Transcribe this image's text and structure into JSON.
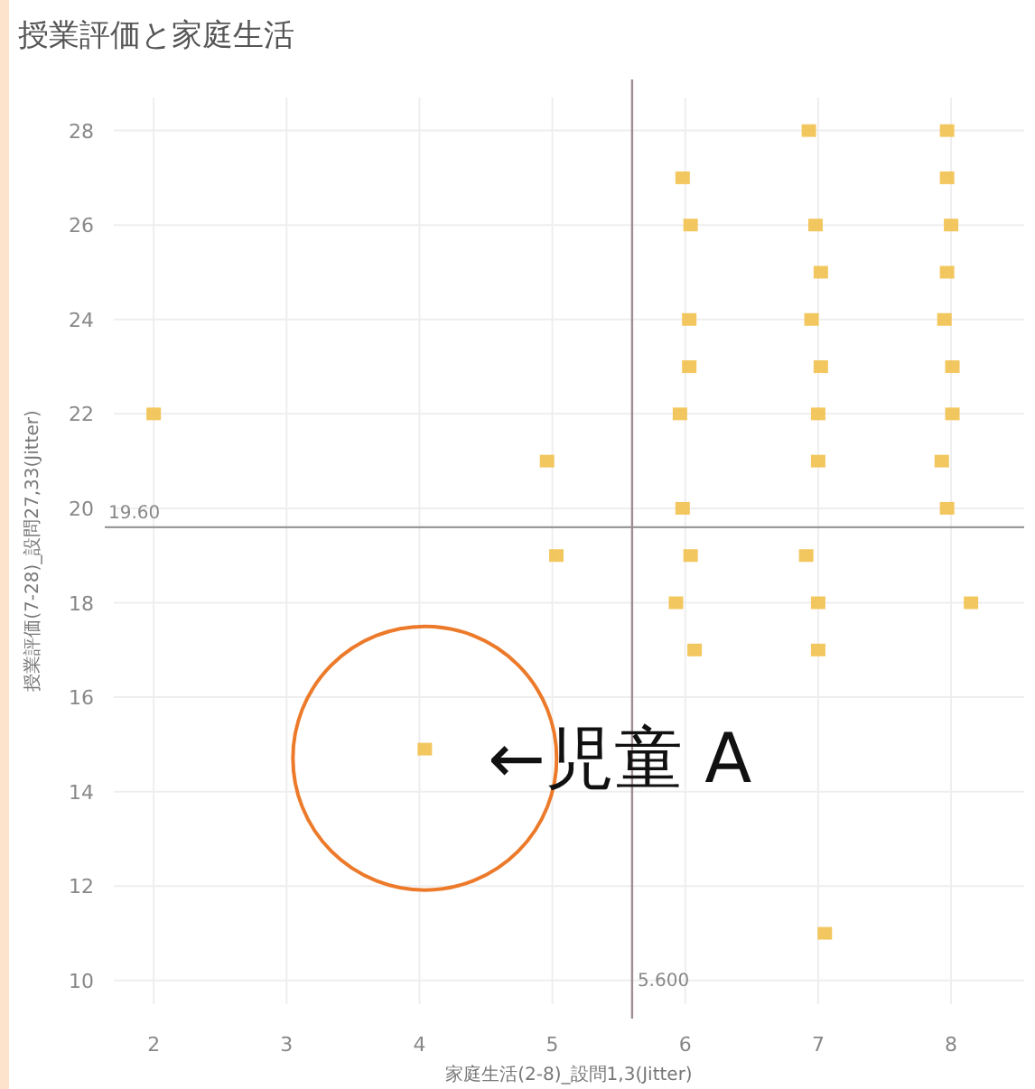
{
  "chart_data": {
    "type": "scatter",
    "title": "授業評価と家庭生活",
    "xlabel": "家庭生活(2-8)_設問1,3(Jitter)",
    "ylabel": "授業評価(7-28)_設問27,33(Jitter)",
    "xlim": [
      1.7,
      8.55
    ],
    "ylim": [
      9.5,
      28.7
    ],
    "xticks": [
      2,
      3,
      4,
      5,
      6,
      7,
      8
    ],
    "yticks": [
      10,
      12,
      14,
      16,
      18,
      20,
      22,
      24,
      26,
      28
    ],
    "grid": true,
    "marker": "square",
    "series": [
      {
        "color": "#f2c14e",
        "x": [
          2,
          4.96,
          5.03,
          4.04,
          6.93,
          7.97,
          5.98,
          7.97,
          6.04,
          6.98,
          8,
          7.02,
          7.97,
          6.03,
          6.95,
          7.95,
          6.03,
          7.02,
          8.01,
          5.96,
          7,
          8.01,
          7,
          7.93,
          5.98,
          7.97,
          6.04,
          6.91,
          5.93,
          7,
          8.15,
          6.07,
          7,
          7.05
        ],
        "values": [
          22,
          21,
          19,
          14.9,
          28,
          28,
          27,
          27,
          26,
          26,
          26,
          25,
          25,
          24,
          24,
          24,
          23,
          23,
          23,
          22,
          22,
          22,
          21,
          21,
          20,
          20,
          19,
          19,
          18,
          18,
          18,
          17,
          17,
          11
        ]
      }
    ],
    "ref_lines": [
      {
        "axis": "y",
        "value": 19.6,
        "label": "19.60",
        "color": "#999999"
      },
      {
        "axis": "x",
        "value": 5.6,
        "label": "5.600",
        "color": "#a08c96"
      }
    ],
    "annotations": [
      {
        "text": "←児童 A",
        "x": 4.04,
        "y": 14.9
      }
    ]
  }
}
